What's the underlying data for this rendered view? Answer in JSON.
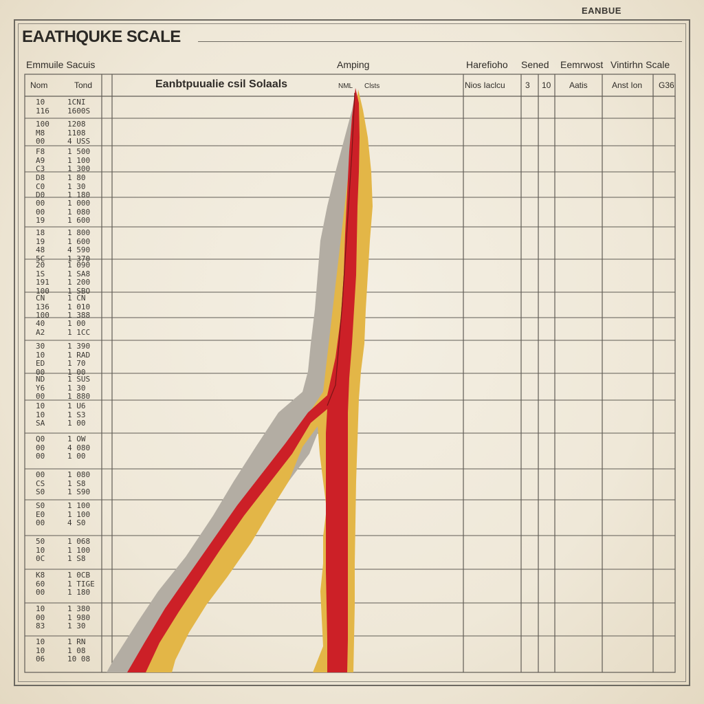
{
  "corner_label": "EANBUE",
  "title": "EAATHQUKE SCALE",
  "header_row": {
    "left": "Emmuile Sacuis",
    "center": "Amping",
    "right_1": "Harefioho",
    "right_2": "Sened",
    "right_3": "Eemrwost",
    "right_4": "Vintirhn Scale"
  },
  "column_headers": {
    "col_a": "Nom",
    "col_b": "Tond",
    "main": "Eanbtpuualie csil Solaals",
    "mid_small": "NML",
    "mid_small_2": "Clsts",
    "c1": "Nios Iaclcu",
    "c2": "3",
    "c3": "10",
    "c4": "Aatis",
    "c5": "Anst Ion",
    "c6": "G36"
  },
  "rows": [
    {
      "a": "10\n116",
      "b": "1CNI\n1600S"
    },
    {
      "a": "100\nM8\n00",
      "b": "1208\n1108\n4 USS"
    },
    {
      "a": "F8\nA9\nC3",
      "b": "1 500\n1 100\n1 300"
    },
    {
      "a": "D8\nC0\nD0",
      "b": "1 80\n1 30\n1 180"
    },
    {
      "a": "00\n00\n19",
      "b": "1 000\n1 080\n1 600"
    },
    {
      "a": "18\n19\n48\n5C",
      "b": "1 800\n1 600\n4 590\n1 370"
    },
    {
      "a": "20\n1S\n191\n100",
      "b": "1 090\n1 SA8\n1 200\n1 SBO"
    },
    {
      "a": "CN\n136\n100",
      "b": "1 CN\n1 010\n1 388"
    },
    {
      "a": "40\nA2",
      "b": "1 00\n1 1CC"
    },
    {
      "a": "30\n10\nED\n00",
      "b": "1 390\n1 RAD\n1 70\n1 00"
    },
    {
      "a": "ND\nY6\n00",
      "b": "1 SUS\n1 30\n1 880"
    },
    {
      "a": "10\n10\nSA",
      "b": "1 U6\n1 S3\n1 00"
    },
    {
      "a": "Q0\n00\n00",
      "b": "1 OW\n4 080\n1 00"
    },
    {
      "a": "00\nCS\nS0",
      "b": "1 080\n1 S8\n1 S90"
    },
    {
      "a": "S0\nE0\n00",
      "b": "1 100\n1 100\n4 S0"
    },
    {
      "a": "50\n10\n0C",
      "b": "1 068\n1 100\n1 S8"
    },
    {
      "a": "K8\n60\n00",
      "b": "1 0CB\n1 TIGE\n1 180"
    },
    {
      "a": "10\n00\n83",
      "b": "1 380\n1 980\n1 30"
    },
    {
      "a": "10\n10\n06",
      "b": "1 RN\n1 08\n10 08"
    }
  ],
  "colors": {
    "paper": "#efe8d8",
    "ink": "#2e2b27",
    "red": "#cc2027",
    "yellow": "#e3b647",
    "gray": "#a9a39a"
  }
}
